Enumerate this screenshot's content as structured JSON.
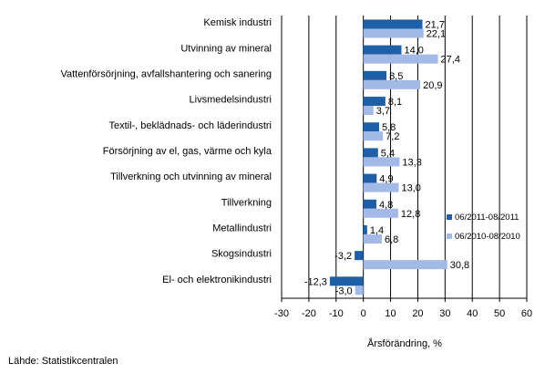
{
  "chart_data": {
    "type": "bar",
    "orientation": "horizontal",
    "categories": [
      "Kemisk industri",
      "Utvinning av mineral",
      "Vattenförsörjning, avfallshantering och sanering",
      "Livsmedelsindustri",
      "Textil-, beklädnads- och läderindustri",
      "Försörjning av el, gas, värme och kyla",
      "Tillverkning och utvinning av mineral",
      "Tillverkning",
      "Metallindustri",
      "Skogsindustri",
      "El- och elektronikindustri"
    ],
    "series": [
      {
        "name": "06/2011-08/2011",
        "color": "#1f5fa8",
        "values": [
          21.7,
          14.0,
          8.5,
          8.1,
          5.8,
          5.4,
          4.9,
          4.8,
          1.4,
          -3.2,
          -12.3
        ],
        "labels": [
          "21,7",
          "14,0",
          "8,5",
          "8,1",
          "5,8",
          "5,4",
          "4,9",
          "4,8",
          "1,4",
          "-3,2",
          "-12,3"
        ]
      },
      {
        "name": "06/2010-08/2010",
        "color": "#a3b9e6",
        "values": [
          22.1,
          27.4,
          20.9,
          3.7,
          7.2,
          13.3,
          13.0,
          12.8,
          6.8,
          30.8,
          -3.0
        ],
        "labels": [
          "22,1",
          "27,4",
          "20,9",
          "3,7",
          "7,2",
          "13,3",
          "13,0",
          "12,8",
          "6,8",
          "30,8",
          "-3,0"
        ]
      }
    ],
    "x_ticks": [
      -30,
      -20,
      -10,
      0,
      10,
      20,
      30,
      40,
      50,
      60
    ],
    "x_tick_labels": [
      "-30",
      "-20",
      "-10",
      "0",
      "10",
      "20",
      "30",
      "40",
      "50",
      "60"
    ],
    "xlim": [
      -30,
      60
    ],
    "xlabel": "Årsförändring, %",
    "grid": true,
    "legend_position": "right"
  },
  "source": "Lähde: Statistikcentralen"
}
